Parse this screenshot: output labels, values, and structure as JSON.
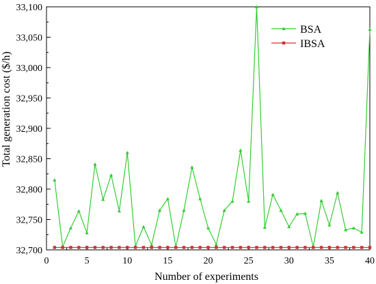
{
  "chart_data": {
    "type": "line",
    "xlabel": "Number of experiments",
    "ylabel": "Total generation cost ($/h)",
    "xlim": [
      0,
      40
    ],
    "ylim": [
      32700,
      33100
    ],
    "x_ticks": [
      0,
      5,
      10,
      15,
      20,
      25,
      30,
      35,
      40
    ],
    "x_tick_labels": [
      "0",
      "5",
      "10",
      "15",
      "20",
      "25",
      "30",
      "35",
      "40"
    ],
    "y_ticks": [
      32700,
      32750,
      32800,
      32850,
      32900,
      32950,
      33000,
      33050,
      33100
    ],
    "y_tick_labels": [
      "32,700",
      "32,750",
      "32,800",
      "32,850",
      "32,900",
      "32,950",
      "33,000",
      "33,050",
      "33,100"
    ],
    "grid": false,
    "legend_position": "top-right",
    "x": [
      1,
      2,
      3,
      4,
      5,
      6,
      7,
      8,
      9,
      10,
      11,
      12,
      13,
      14,
      15,
      16,
      17,
      18,
      19,
      20,
      21,
      22,
      23,
      24,
      25,
      26,
      27,
      28,
      29,
      30,
      31,
      32,
      33,
      34,
      35,
      36,
      37,
      38,
      39,
      40
    ],
    "series": [
      {
        "name": "BSA",
        "color": "#33cc33",
        "marker": "triangle",
        "values": [
          32815,
          32705,
          32736,
          32764,
          32728,
          32841,
          32783,
          32823,
          32764,
          32860,
          32706,
          32738,
          32708,
          32765,
          32784,
          32705,
          32765,
          32836,
          32784,
          32736,
          32709,
          32765,
          32780,
          32864,
          32780,
          33100,
          32737,
          32791,
          32765,
          32738,
          32759,
          32760,
          32705,
          32781,
          32741,
          32794,
          32733,
          32736,
          32729,
          33063
        ]
      },
      {
        "name": "IBSA",
        "color": "#cc3333",
        "marker": "square",
        "values": [
          32704,
          32704,
          32704,
          32704,
          32704,
          32704,
          32704,
          32704,
          32704,
          32704,
          32704,
          32704,
          32704,
          32704,
          32704,
          32704,
          32704,
          32704,
          32704,
          32704,
          32704,
          32704,
          32704,
          32704,
          32704,
          32704,
          32704,
          32704,
          32704,
          32704,
          32704,
          32704,
          32704,
          32704,
          32704,
          32704,
          32704,
          32704,
          32704,
          32704
        ]
      }
    ]
  }
}
